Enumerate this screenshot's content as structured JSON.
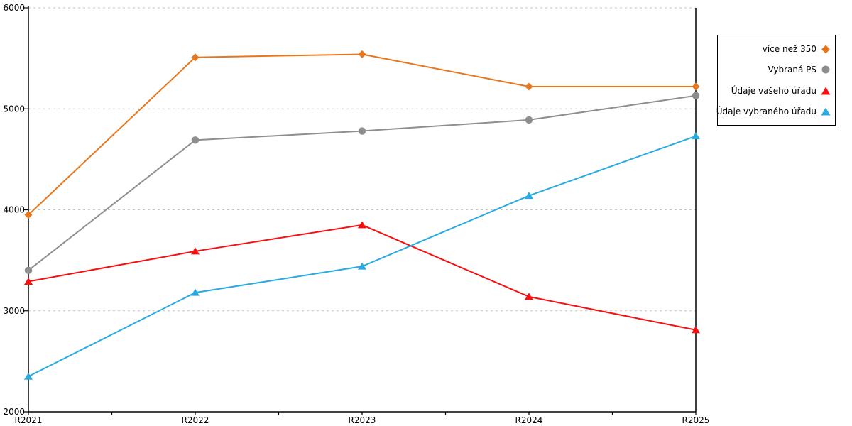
{
  "chart_data": {
    "type": "line",
    "categories": [
      "R2021",
      "R2022",
      "R2023",
      "R2024",
      "R2025"
    ],
    "series": [
      {
        "name": "více než 350",
        "color": "#E8761C",
        "marker": "diamond",
        "values": [
          3950,
          5510,
          5540,
          5220,
          5220
        ]
      },
      {
        "name": "Vybraná PS",
        "color": "#8E8E8E",
        "marker": "circle",
        "values": [
          3400,
          4690,
          4780,
          4890,
          5130
        ]
      },
      {
        "name": "Údaje vašeho úřadu",
        "color": "#F90F0F",
        "marker": "triangle",
        "values": [
          3290,
          3590,
          3850,
          3140,
          2810
        ]
      },
      {
        "name": "Údaje vybraného úřadu",
        "color": "#29ABE2",
        "marker": "triangle",
        "values": [
          2350,
          3180,
          3440,
          4140,
          4730
        ]
      }
    ],
    "title": "",
    "xlabel": "",
    "ylabel": "",
    "ylim": [
      2000,
      6000
    ],
    "ytick_interval": 1000,
    "yticks": [
      "2000",
      "3000",
      "4000",
      "5000",
      "6000"
    ],
    "grid": "horizontal-dotted",
    "grid_color": "#C3C3C3",
    "axis_color": "#000000",
    "legend_position": "top-right"
  }
}
